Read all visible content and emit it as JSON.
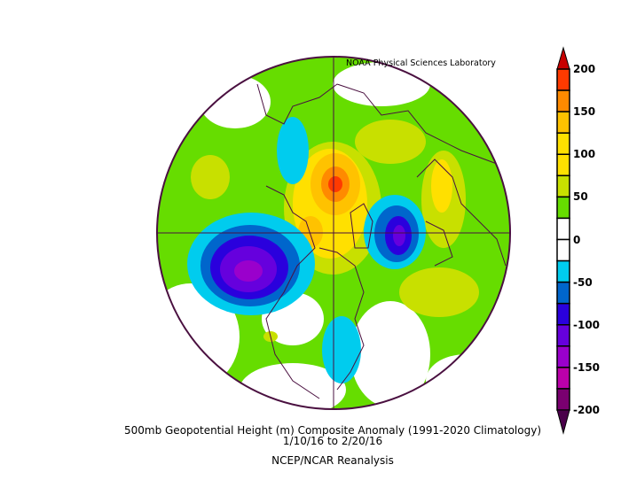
{
  "credit": "NOAA Physical Sciences Laboratory",
  "title": "500mb Geopotential Height (m) Composite Anomaly (1991-2020 Climatology)",
  "date_range": "1/10/16  to 2/20/16",
  "source": "NCEP/NCAR Reanalysis",
  "map": {
    "projection": "north polar stereographic",
    "variable": "500mb geopotential height anomaly",
    "units": "m",
    "features": [
      {
        "region": "Gulf of Alaska / NE Pacific",
        "sign": "negative",
        "peak_approx": -150
      },
      {
        "region": "Arctic / north of Siberia",
        "sign": "positive",
        "peak_approx": 175
      },
      {
        "region": "Greenland / Baffin",
        "sign": "positive",
        "peak_approx": 125
      },
      {
        "region": "North Atlantic / Iceland",
        "sign": "negative",
        "peak_approx": -125
      },
      {
        "region": "Eastern Siberia",
        "sign": "negative",
        "peak_approx": -50
      },
      {
        "region": "Eastern North America",
        "sign": "negative",
        "peak_approx": -50
      }
    ]
  },
  "colorbar": {
    "min": -200,
    "max": 200,
    "interval": 25,
    "extend": "both",
    "tick_labels": [
      "200",
      "150",
      "100",
      "50",
      "0",
      "-50",
      "-100",
      "-150",
      "-200"
    ],
    "colors_top_to_bottom": [
      "#c80000",
      "#ff3a00",
      "#ff8a00",
      "#ffc200",
      "#ffe000",
      "#ffe000",
      "#c8e000",
      "#66dd00",
      "#ffffff",
      "#ffffff",
      "#00ccee",
      "#0066cc",
      "#2a00dd",
      "#6600dd",
      "#9a00cc",
      "#bb00aa",
      "#7a0070",
      "#4a004a"
    ]
  }
}
